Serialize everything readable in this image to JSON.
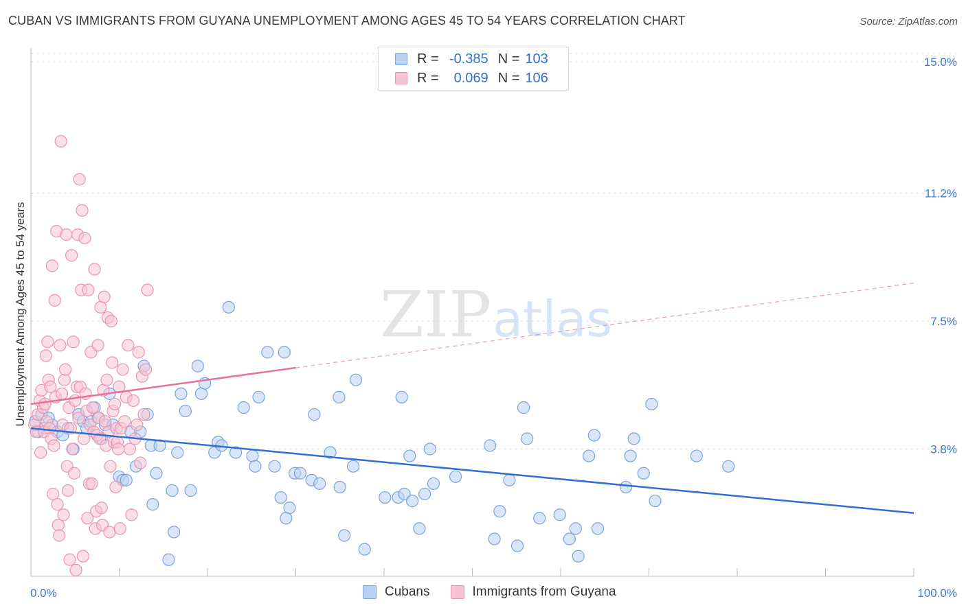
{
  "title": "CUBAN VS IMMIGRANTS FROM GUYANA UNEMPLOYMENT AMONG AGES 45 TO 54 YEARS CORRELATION CHART",
  "source": "Source: ZipAtlas.com",
  "watermark": {
    "zip": "ZIP",
    "atlas": "atlas"
  },
  "legend": {
    "rows": [
      {
        "r_label": "R =",
        "r_value": "-0.385",
        "n_label": "N =",
        "n_value": "103"
      },
      {
        "r_label": "R =",
        "r_value": "0.069",
        "n_label": "N =",
        "n_value": "106"
      }
    ]
  },
  "bottom_legend": {
    "cubans": "Cubans",
    "guyana": "Immigrants from Guyana"
  },
  "colors": {
    "blue_fill": "#b9d1f3",
    "blue_stroke": "#7aa3dd",
    "blue_line": "#2f6fd1",
    "pink_fill": "#f8c4d4",
    "pink_stroke": "#e995b0",
    "pink_line": "#e8709a",
    "tick_label": "#3b78d8",
    "grid": "#dddddd"
  },
  "chart_data": {
    "type": "scatter",
    "xlabel": "",
    "ylabel": "Unemployment Among Ages 45 to 54 years",
    "xlim": [
      0,
      100
    ],
    "ylim": [
      0,
      15.5
    ],
    "x_tick_labels": [
      "0.0%",
      "100.0%"
    ],
    "y_ticks": [
      3.8,
      7.5,
      11.2,
      15.0
    ],
    "y_tick_labels": [
      "3.8%",
      "7.5%",
      "11.2%",
      "15.0%"
    ],
    "grid": "horizontal dashed",
    "legend_placement": "top-center",
    "series": [
      {
        "name": "Cubans",
        "r": -0.385,
        "n": 103,
        "trend": {
          "x": [
            0,
            100
          ],
          "y": [
            4.4,
            1.95
          ]
        },
        "points": [
          [
            0.5,
            4.6
          ],
          [
            0.8,
            4.3
          ],
          [
            1.2,
            4.8
          ],
          [
            1.5,
            4.4
          ],
          [
            2.0,
            4.7
          ],
          [
            2.4,
            4.5
          ],
          [
            3.0,
            4.3
          ],
          [
            3.6,
            4.2
          ],
          [
            4.2,
            4.4
          ],
          [
            4.8,
            3.8
          ],
          [
            5.4,
            4.8
          ],
          [
            5.9,
            4.6
          ],
          [
            6.3,
            4.4
          ],
          [
            6.8,
            4.6
          ],
          [
            7.2,
            5.0
          ],
          [
            7.6,
            4.7
          ],
          [
            8.0,
            4.1
          ],
          [
            8.4,
            4.5
          ],
          [
            8.9,
            5.4
          ],
          [
            9.3,
            4.5
          ],
          [
            10.0,
            3.0
          ],
          [
            10.4,
            2.9
          ],
          [
            10.8,
            2.9
          ],
          [
            11.3,
            4.3
          ],
          [
            11.9,
            3.3
          ],
          [
            12.4,
            4.3
          ],
          [
            12.8,
            6.2
          ],
          [
            13.2,
            4.8
          ],
          [
            13.6,
            3.9
          ],
          [
            13.8,
            2.2
          ],
          [
            14.2,
            3.1
          ],
          [
            14.6,
            3.9
          ],
          [
            15.6,
            0.6
          ],
          [
            16.0,
            2.6
          ],
          [
            16.2,
            1.4
          ],
          [
            16.6,
            3.7
          ],
          [
            17.0,
            5.4
          ],
          [
            17.5,
            4.9
          ],
          [
            18.1,
            2.6
          ],
          [
            18.9,
            6.2
          ],
          [
            19.3,
            5.4
          ],
          [
            19.7,
            5.7
          ],
          [
            20.8,
            3.7
          ],
          [
            21.2,
            4.0
          ],
          [
            21.6,
            3.9
          ],
          [
            22.4,
            7.9
          ],
          [
            23.2,
            3.7
          ],
          [
            24.1,
            5.0
          ],
          [
            25.1,
            3.6
          ],
          [
            25.4,
            3.3
          ],
          [
            25.8,
            5.3
          ],
          [
            26.8,
            6.6
          ],
          [
            27.6,
            3.3
          ],
          [
            28.3,
            2.4
          ],
          [
            28.7,
            6.6
          ],
          [
            28.9,
            1.8
          ],
          [
            29.3,
            2.1
          ],
          [
            29.9,
            3.1
          ],
          [
            30.5,
            3.1
          ],
          [
            31.8,
            2.9
          ],
          [
            32.1,
            4.8
          ],
          [
            32.7,
            2.8
          ],
          [
            33.9,
            3.7
          ],
          [
            34.9,
            5.3
          ],
          [
            35.0,
            2.7
          ],
          [
            35.5,
            1.3
          ],
          [
            36.5,
            3.3
          ],
          [
            36.8,
            5.8
          ],
          [
            37.8,
            0.9
          ],
          [
            40.1,
            2.4
          ],
          [
            41.6,
            2.4
          ],
          [
            42.0,
            5.3
          ],
          [
            42.3,
            2.5
          ],
          [
            42.9,
            3.6
          ],
          [
            43.2,
            2.3
          ],
          [
            44.0,
            1.5
          ],
          [
            44.6,
            2.5
          ],
          [
            45.2,
            3.8
          ],
          [
            45.6,
            2.8
          ],
          [
            48.1,
            3.0
          ],
          [
            52.0,
            3.9
          ],
          [
            52.5,
            1.2
          ],
          [
            53.1,
            2.0
          ],
          [
            54.2,
            2.9
          ],
          [
            55.1,
            1.0
          ],
          [
            55.8,
            5.0
          ],
          [
            56.2,
            4.1
          ],
          [
            57.6,
            1.8
          ],
          [
            59.9,
            1.9
          ],
          [
            61.0,
            1.2
          ],
          [
            61.7,
            1.5
          ],
          [
            62.0,
            0.7
          ],
          [
            63.2,
            3.6
          ],
          [
            63.8,
            4.2
          ],
          [
            64.2,
            1.5
          ],
          [
            67.4,
            2.7
          ],
          [
            67.9,
            3.6
          ],
          [
            68.3,
            4.1
          ],
          [
            69.4,
            3.1
          ],
          [
            70.3,
            5.1
          ],
          [
            70.7,
            2.3
          ],
          [
            75.4,
            3.6
          ],
          [
            79.0,
            3.3
          ]
        ]
      },
      {
        "name": "Immigrants from Guyana",
        "r": 0.069,
        "n": 106,
        "trend": {
          "x": [
            0,
            30
          ],
          "y": [
            5.1,
            6.15
          ]
        },
        "trend_dashed": {
          "x": [
            30,
            100
          ],
          "y": [
            6.15,
            8.6
          ]
        },
        "points": [
          [
            0.4,
            4.5
          ],
          [
            0.6,
            4.3
          ],
          [
            0.8,
            4.8
          ],
          [
            1.0,
            5.2
          ],
          [
            1.1,
            3.7
          ],
          [
            1.2,
            5.5
          ],
          [
            1.4,
            5.0
          ],
          [
            1.5,
            4.3
          ],
          [
            1.6,
            5.1
          ],
          [
            1.7,
            6.5
          ],
          [
            1.8,
            4.6
          ],
          [
            1.9,
            6.9
          ],
          [
            2.0,
            5.8
          ],
          [
            2.1,
            4.4
          ],
          [
            2.2,
            5.6
          ],
          [
            2.3,
            4.1
          ],
          [
            2.4,
            9.1
          ],
          [
            2.5,
            2.5
          ],
          [
            2.6,
            3.9
          ],
          [
            2.7,
            8.1
          ],
          [
            2.8,
            5.3
          ],
          [
            2.9,
            10.1
          ],
          [
            3.0,
            2.2
          ],
          [
            3.1,
            1.6
          ],
          [
            3.2,
            1.3
          ],
          [
            3.3,
            6.8
          ],
          [
            3.4,
            12.7
          ],
          [
            3.5,
            5.4
          ],
          [
            3.6,
            4.5
          ],
          [
            3.7,
            1.9
          ],
          [
            3.8,
            5.8
          ],
          [
            3.9,
            6.1
          ],
          [
            4.0,
            10.0
          ],
          [
            4.1,
            3.3
          ],
          [
            4.2,
            2.6
          ],
          [
            4.3,
            5.0
          ],
          [
            4.4,
            0.6
          ],
          [
            4.5,
            4.4
          ],
          [
            4.6,
            9.4
          ],
          [
            4.7,
            3.8
          ],
          [
            4.8,
            6.9
          ],
          [
            4.9,
            3.1
          ],
          [
            5.0,
            5.2
          ],
          [
            5.1,
            0.3
          ],
          [
            5.2,
            5.6
          ],
          [
            5.3,
            10.0
          ],
          [
            5.4,
            4.7
          ],
          [
            5.5,
            11.6
          ],
          [
            5.6,
            5.6
          ],
          [
            5.7,
            8.4
          ],
          [
            5.8,
            10.7
          ],
          [
            5.9,
            0.7
          ],
          [
            6.0,
            4.1
          ],
          [
            6.1,
            9.9
          ],
          [
            6.2,
            5.4
          ],
          [
            6.3,
            4.9
          ],
          [
            6.4,
            1.8
          ],
          [
            6.5,
            8.4
          ],
          [
            6.6,
            2.8
          ],
          [
            6.7,
            4.5
          ],
          [
            6.8,
            6.6
          ],
          [
            6.9,
            2.8
          ],
          [
            7.0,
            5.0
          ],
          [
            7.1,
            4.3
          ],
          [
            7.2,
            9.0
          ],
          [
            7.3,
            1.5
          ],
          [
            7.4,
            2.0
          ],
          [
            7.5,
            4.2
          ],
          [
            7.6,
            6.8
          ],
          [
            7.7,
            4.7
          ],
          [
            7.8,
            4.1
          ],
          [
            7.9,
            7.9
          ],
          [
            8.0,
            2.1
          ],
          [
            8.1,
            1.6
          ],
          [
            8.2,
            5.5
          ],
          [
            8.3,
            8.2
          ],
          [
            8.4,
            4.6
          ],
          [
            8.5,
            3.9
          ],
          [
            8.6,
            5.8
          ],
          [
            8.7,
            7.6
          ],
          [
            8.8,
            4.3
          ],
          [
            8.9,
            1.4
          ],
          [
            9.0,
            3.3
          ],
          [
            9.1,
            7.5
          ],
          [
            9.2,
            6.3
          ],
          [
            9.3,
            4.9
          ],
          [
            9.4,
            4.0
          ],
          [
            9.5,
            5.1
          ],
          [
            9.6,
            2.7
          ],
          [
            9.7,
            4.4
          ],
          [
            9.8,
            4.0
          ],
          [
            9.9,
            3.8
          ],
          [
            10.0,
            5.6
          ],
          [
            10.1,
            1.5
          ],
          [
            10.2,
            4.4
          ],
          [
            10.4,
            6.1
          ],
          [
            10.6,
            4.6
          ],
          [
            10.8,
            5.3
          ],
          [
            11.0,
            6.8
          ],
          [
            11.2,
            3.8
          ],
          [
            11.4,
            1.9
          ],
          [
            11.6,
            5.2
          ],
          [
            11.8,
            4.1
          ],
          [
            12.0,
            4.5
          ],
          [
            12.2,
            6.6
          ],
          [
            12.4,
            3.4
          ],
          [
            12.6,
            5.9
          ],
          [
            12.8,
            4.8
          ],
          [
            13.0,
            6.1
          ],
          [
            13.2,
            8.4
          ]
        ]
      }
    ]
  }
}
